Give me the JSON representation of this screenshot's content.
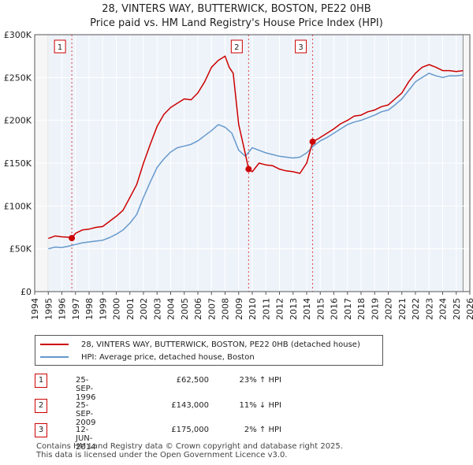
{
  "chart_data": {
    "type": "line",
    "title": "28, VINTERS WAY, BUTTERWICK, BOSTON, PE22 0HB",
    "subtitle": "Price paid vs. HM Land Registry's House Price Index (HPI)",
    "xlim": [
      1994,
      2026
    ],
    "ylim": [
      0,
      300000
    ],
    "x_ticks": [
      "1994",
      "1995",
      "1996",
      "1997",
      "1998",
      "1999",
      "2000",
      "2001",
      "2002",
      "2003",
      "2004",
      "2005",
      "2006",
      "2007",
      "2008",
      "2009",
      "2010",
      "2011",
      "2012",
      "2013",
      "2014",
      "2015",
      "2016",
      "2017",
      "2018",
      "2019",
      "2020",
      "2021",
      "2022",
      "2023",
      "2024",
      "2025",
      "2026"
    ],
    "y_ticks": [
      {
        "value": 0,
        "label": "£0"
      },
      {
        "value": 50000,
        "label": "£50K"
      },
      {
        "value": 100000,
        "label": "£100K"
      },
      {
        "value": 150000,
        "label": "£150K"
      },
      {
        "value": 200000,
        "label": "£200K"
      },
      {
        "value": 250000,
        "label": "£250K"
      },
      {
        "value": 300000,
        "label": "£300K"
      }
    ],
    "series": [
      {
        "name": "28, VINTERS WAY, BUTTERWICK, BOSTON, PE22 0HB (detached house)",
        "color": "#cc0000",
        "x": [
          1995.0,
          1995.5,
          1996.0,
          1996.5,
          1996.73,
          1997.0,
          1997.5,
          1998.0,
          1998.5,
          1999.0,
          1999.5,
          2000.0,
          2000.5,
          2001.0,
          2001.5,
          2002.0,
          2002.5,
          2003.0,
          2003.5,
          2004.0,
          2004.5,
          2005.0,
          2005.5,
          2006.0,
          2006.5,
          2007.0,
          2007.5,
          2008.0,
          2008.3,
          2008.6,
          2009.0,
          2009.5,
          2009.73,
          2010.0,
          2010.5,
          2011.0,
          2011.5,
          2012.0,
          2012.5,
          2013.0,
          2013.5,
          2014.0,
          2014.44,
          2014.8,
          2015.0,
          2015.5,
          2016.0,
          2016.5,
          2017.0,
          2017.5,
          2018.0,
          2018.5,
          2019.0,
          2019.5,
          2020.0,
          2020.5,
          2021.0,
          2021.5,
          2022.0,
          2022.5,
          2023.0,
          2023.5,
          2024.0,
          2024.5,
          2025.0,
          2025.5
        ],
        "values": [
          62000,
          65000,
          64000,
          63500,
          62500,
          68000,
          72000,
          73000,
          75000,
          76000,
          82000,
          88000,
          95000,
          110000,
          125000,
          150000,
          172000,
          193000,
          207000,
          215000,
          220000,
          225000,
          224000,
          232000,
          245000,
          262000,
          270000,
          275000,
          262000,
          255000,
          195000,
          160000,
          143000,
          140000,
          150000,
          148000,
          147000,
          143000,
          141000,
          140000,
          138000,
          150000,
          175000,
          178000,
          180000,
          185000,
          190000,
          196000,
          200000,
          205000,
          206000,
          210000,
          212000,
          216000,
          218000,
          225000,
          232000,
          245000,
          255000,
          262000,
          265000,
          262000,
          258000,
          258000,
          257000,
          258000
        ]
      },
      {
        "name": "HPI: Average price, detached house, Boston",
        "color": "#6699cc",
        "x": [
          1995.0,
          1995.5,
          1996.0,
          1996.5,
          1997.0,
          1997.5,
          1998.0,
          1998.5,
          1999.0,
          1999.5,
          2000.0,
          2000.5,
          2001.0,
          2001.5,
          2002.0,
          2002.5,
          2003.0,
          2003.5,
          2004.0,
          2004.5,
          2005.0,
          2005.5,
          2006.0,
          2006.5,
          2007.0,
          2007.5,
          2008.0,
          2008.5,
          2009.0,
          2009.5,
          2010.0,
          2010.5,
          2011.0,
          2011.5,
          2012.0,
          2012.5,
          2013.0,
          2013.5,
          2014.0,
          2014.5,
          2015.0,
          2015.5,
          2016.0,
          2016.5,
          2017.0,
          2017.5,
          2018.0,
          2018.5,
          2019.0,
          2019.5,
          2020.0,
          2020.5,
          2021.0,
          2021.5,
          2022.0,
          2022.5,
          2023.0,
          2023.5,
          2024.0,
          2024.5,
          2025.0,
          2025.5
        ],
        "values": [
          50000,
          52000,
          51500,
          53000,
          55000,
          57000,
          58000,
          59000,
          60000,
          63000,
          67000,
          72000,
          80000,
          90000,
          110000,
          128000,
          145000,
          155000,
          163000,
          168000,
          170000,
          172000,
          176000,
          182000,
          188000,
          195000,
          192000,
          185000,
          165000,
          158000,
          168000,
          165000,
          162000,
          160000,
          158000,
          157000,
          156000,
          157000,
          162000,
          170000,
          176000,
          180000,
          185000,
          190000,
          195000,
          198000,
          200000,
          203000,
          206000,
          210000,
          212000,
          218000,
          225000,
          235000,
          245000,
          250000,
          255000,
          252000,
          250000,
          252000,
          252000,
          253000
        ]
      }
    ],
    "transactions": [
      {
        "id": "1",
        "x": 1996.73,
        "value": 62500,
        "date": "25-SEP-1996",
        "price": "£62,500",
        "hpi": "23% ↑ HPI"
      },
      {
        "id": "2",
        "x": 2009.73,
        "value": 143000,
        "date": "25-SEP-2009",
        "price": "£143,000",
        "hpi": "11% ↓ HPI"
      },
      {
        "id": "3",
        "x": 2014.44,
        "value": 175000,
        "date": "12-JUN-2014",
        "price": "£175,000",
        "hpi": "2% ↑ HPI"
      }
    ]
  },
  "legend": {
    "property_label": "28, VINTERS WAY, BUTTERWICK, BOSTON, PE22 0HB (detached house)",
    "hpi_label": "HPI: Average price, detached house, Boston"
  },
  "footer": {
    "line1": "Contains HM Land Registry data © Crown copyright and database right 2025.",
    "line2": "This data is licensed under the Open Government Licence v3.0."
  }
}
